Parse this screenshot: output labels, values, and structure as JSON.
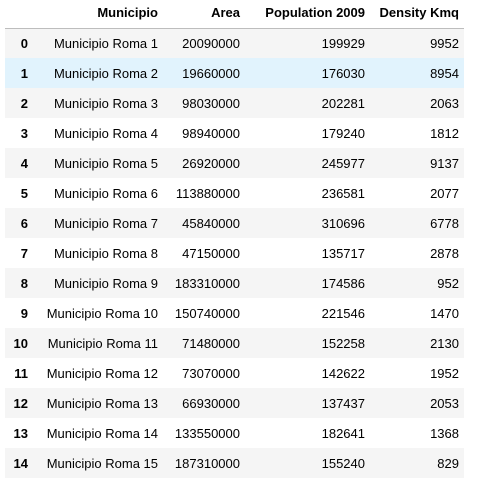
{
  "table": {
    "columns": [
      "",
      "Municipio",
      "Area",
      "Population 2009",
      "Density Kmq"
    ],
    "hover_row": 1,
    "rows": [
      {
        "index": "0",
        "municipio": "Municipio Roma 1",
        "area": "20090000",
        "population": "199929",
        "density": "9952"
      },
      {
        "index": "1",
        "municipio": "Municipio Roma 2",
        "area": "19660000",
        "population": "176030",
        "density": "8954"
      },
      {
        "index": "2",
        "municipio": "Municipio Roma 3",
        "area": "98030000",
        "population": "202281",
        "density": "2063"
      },
      {
        "index": "3",
        "municipio": "Municipio Roma 4",
        "area": "98940000",
        "population": "179240",
        "density": "1812"
      },
      {
        "index": "4",
        "municipio": "Municipio Roma 5",
        "area": "26920000",
        "population": "245977",
        "density": "9137"
      },
      {
        "index": "5",
        "municipio": "Municipio Roma 6",
        "area": "113880000",
        "population": "236581",
        "density": "2077"
      },
      {
        "index": "6",
        "municipio": "Municipio Roma 7",
        "area": "45840000",
        "population": "310696",
        "density": "6778"
      },
      {
        "index": "7",
        "municipio": "Municipio Roma 8",
        "area": "47150000",
        "population": "135717",
        "density": "2878"
      },
      {
        "index": "8",
        "municipio": "Municipio Roma 9",
        "area": "183310000",
        "population": "174586",
        "density": "952"
      },
      {
        "index": "9",
        "municipio": "Municipio Roma 10",
        "area": "150740000",
        "population": "221546",
        "density": "1470"
      },
      {
        "index": "10",
        "municipio": "Municipio Roma 11",
        "area": "71480000",
        "population": "152258",
        "density": "2130"
      },
      {
        "index": "11",
        "municipio": "Municipio Roma 12",
        "area": "73070000",
        "population": "142622",
        "density": "1952"
      },
      {
        "index": "12",
        "municipio": "Municipio Roma 13",
        "area": "66930000",
        "population": "137437",
        "density": "2053"
      },
      {
        "index": "13",
        "municipio": "Municipio Roma 14",
        "area": "133550000",
        "population": "182641",
        "density": "1368"
      },
      {
        "index": "14",
        "municipio": "Municipio Roma 15",
        "area": "187310000",
        "population": "155240",
        "density": "829"
      }
    ]
  }
}
